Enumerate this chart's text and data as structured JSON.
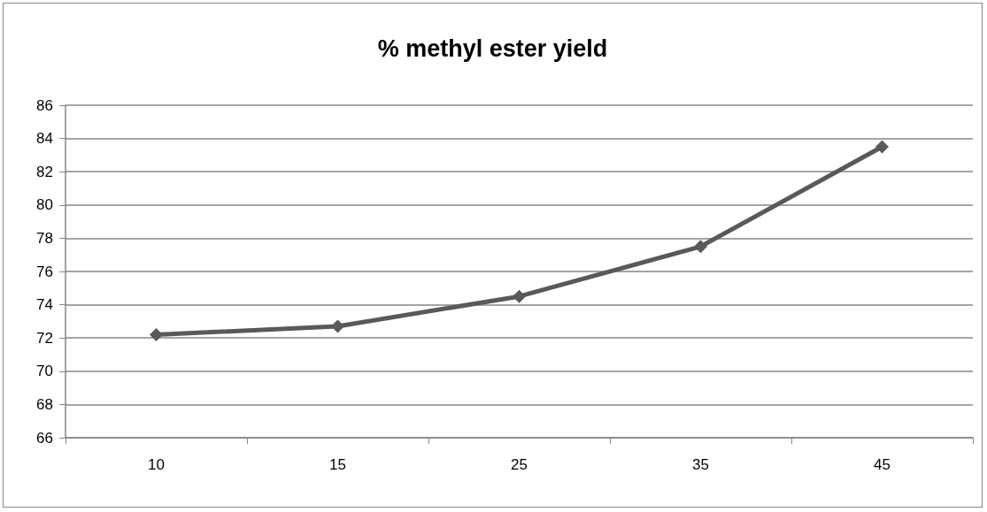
{
  "chart_data": {
    "type": "line",
    "title": "% methyl ester yield",
    "categories": [
      "10",
      "15",
      "25",
      "35",
      "45"
    ],
    "series": [
      {
        "color": "#595959",
        "values": [
          72.2,
          72.7,
          74.5,
          77.5,
          83.5
        ]
      }
    ],
    "ylim": [
      66,
      86
    ],
    "yticks": [
      66,
      68,
      70,
      72,
      74,
      76,
      78,
      80,
      82,
      84,
      86
    ],
    "grid": "y",
    "marker": "diamond",
    "line_style": "solid"
  }
}
